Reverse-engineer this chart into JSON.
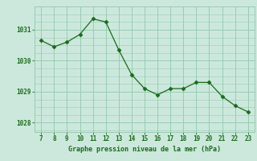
{
  "x": [
    7,
    8,
    9,
    10,
    11,
    12,
    13,
    14,
    15,
    16,
    17,
    18,
    19,
    20,
    21,
    22,
    23
  ],
  "y": [
    1030.65,
    1030.45,
    1030.6,
    1030.85,
    1031.35,
    1031.25,
    1030.35,
    1029.55,
    1029.1,
    1028.9,
    1029.1,
    1029.1,
    1029.3,
    1029.3,
    1028.85,
    1028.55,
    1028.35
  ],
  "line_color": "#1a6b1a",
  "marker": "D",
  "marker_size": 2.5,
  "bg_color": "#cce8dc",
  "grid_color": "#99ccb3",
  "xlabel": "Graphe pression niveau de la mer (hPa)",
  "xlabel_color": "#1a6b1a",
  "tick_color": "#1a6b1a",
  "ytick_labels": [
    1028,
    1029,
    1030,
    1031
  ],
  "xtick_labels": [
    7,
    8,
    9,
    10,
    11,
    12,
    13,
    14,
    15,
    16,
    17,
    18,
    19,
    20,
    21,
    22,
    23
  ],
  "ylim": [
    1027.7,
    1031.75
  ],
  "xlim": [
    6.5,
    23.5
  ]
}
